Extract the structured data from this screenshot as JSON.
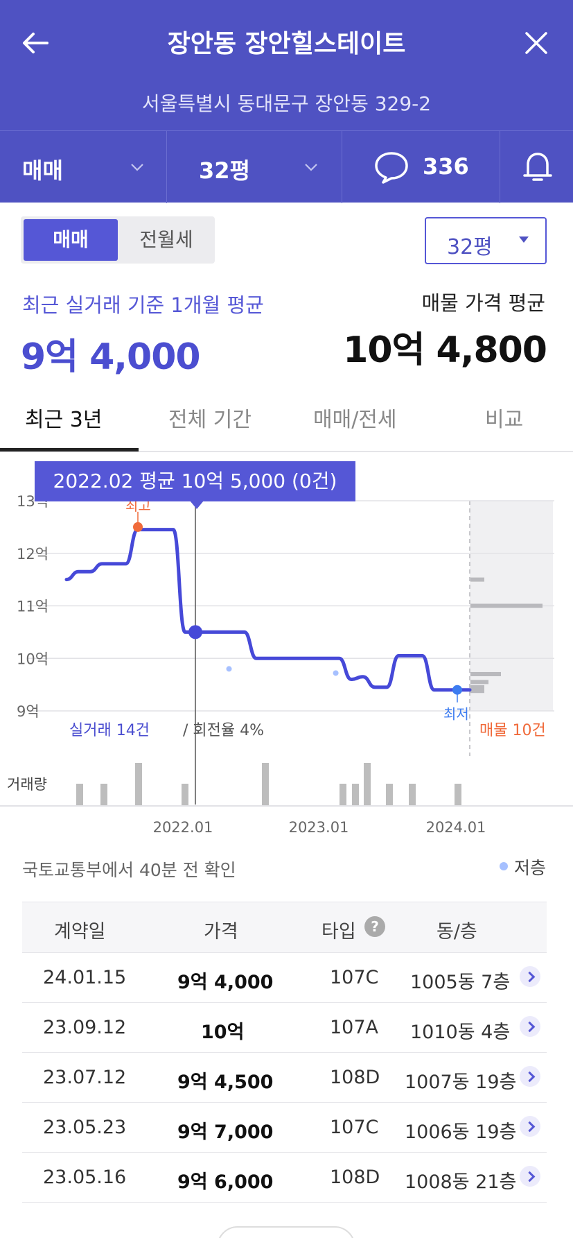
{
  "header": {
    "title": "장안동 장안힐스테이트",
    "address": "서울특별시 동대문구 장안동 329-2",
    "trade_type": "매매",
    "area": "32평",
    "comment_count": "336"
  },
  "toggle": {
    "sale": "매매",
    "rent": "전월세"
  },
  "area_select": "32평",
  "summary": {
    "recent_label": "최근 실거래 기준 1개월 평균",
    "recent_value": "9억 4,000",
    "listing_label": "매물 가격 평균",
    "listing_value": "10억 4,800"
  },
  "tabs": [
    "최근 3년",
    "전체 기간",
    "매매/전세",
    "비교"
  ],
  "chart_tooltip": "2022.02 평균 10억 5,000 (0건)",
  "chart_data": {
    "type": "line",
    "y_ticks": [
      "13억",
      "12억",
      "11억",
      "10억",
      "9억"
    ],
    "ylim": [
      9,
      13
    ],
    "x_ticks": [
      "2022.01",
      "2023.01",
      "2024.01"
    ],
    "series": [
      {
        "x": [
          "2021.03",
          "2021.04",
          "2021.05",
          "2021.06",
          "2021.07",
          "2021.08",
          "2021.09",
          "2021.10",
          "2021.11",
          "2021.12",
          "2022.01",
          "2022.02",
          "2022.03",
          "2022.04",
          "2022.05",
          "2022.06",
          "2022.07",
          "2022.08",
          "2022.09",
          "2022.10",
          "2022.11",
          "2022.12",
          "2023.01",
          "2023.02",
          "2023.03",
          "2023.04",
          "2023.05",
          "2023.06",
          "2023.07",
          "2023.08",
          "2023.09",
          "2023.10",
          "2023.11",
          "2023.12",
          "2024.01"
        ],
        "values": [
          11.5,
          11.65,
          11.65,
          11.8,
          11.8,
          11.8,
          12.45,
          12.45,
          12.45,
          12.45,
          10.5,
          10.5,
          10.5,
          10.5,
          10.5,
          10.5,
          10.0,
          10.0,
          10.0,
          10.0,
          10.0,
          10.0,
          10.0,
          10.0,
          9.6,
          9.65,
          9.45,
          9.45,
          10.05,
          10.05,
          10.05,
          9.4,
          9.4,
          9.4,
          9.4
        ]
      }
    ],
    "high_label": "최고",
    "low_label": "최저",
    "deals_label": "실거래 14건",
    "turnover_label": "/ 회전율 4%",
    "listing_label": "매물 10건",
    "volume_label": "거래량"
  },
  "update_note": "국토교통부에서 40분 전 확인",
  "legend_low_floor": "저층",
  "table": {
    "headers": [
      "계약일",
      "가격",
      "타입",
      "동/층"
    ],
    "rows": [
      {
        "date": "24.01.15",
        "price": "9억 4,000",
        "type": "107C",
        "unit": "1005동 7층"
      },
      {
        "date": "23.09.12",
        "price": "10억",
        "type": "107A",
        "unit": "1010동 4층"
      },
      {
        "date": "23.07.12",
        "price": "9억 4,500",
        "type": "108D",
        "unit": "1007동 19층"
      },
      {
        "date": "23.05.23",
        "price": "9억 7,000",
        "type": "107C",
        "unit": "1006동 19층"
      },
      {
        "date": "23.05.16",
        "price": "9억 6,000",
        "type": "108D",
        "unit": "1008동 21층"
      }
    ]
  },
  "colors": {
    "brand": "#4f52c2",
    "line": "#4649d8",
    "high": "#f06a3a",
    "low": "#3d7cf0",
    "listing": "#f06a3a"
  }
}
